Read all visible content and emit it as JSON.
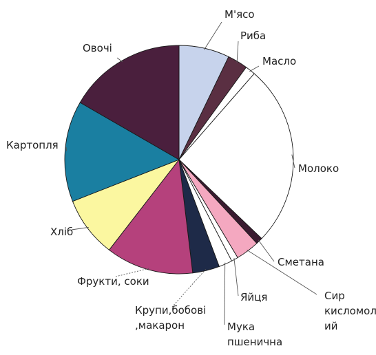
{
  "chart_data": {
    "type": "pie",
    "start_angle_deg": 0,
    "direction": "clockwise",
    "legend": "none",
    "slices": [
      {
        "label": "М'ясо",
        "label_lines": [
          "М'ясо"
        ],
        "value": 7.5,
        "color": "#c7d3ec"
      },
      {
        "label": "Риба",
        "label_lines": [
          "Риба"
        ],
        "value": 3.0,
        "color": "#5a2f42"
      },
      {
        "label": "Масло",
        "label_lines": [
          "Масло"
        ],
        "value": 1.5,
        "color": "#ffffff"
      },
      {
        "label": "Молоко",
        "label_lines": [
          "Молоко"
        ],
        "value": 27.0,
        "color": "#ffffff"
      },
      {
        "label": "Сметана",
        "label_lines": [
          "Сметана"
        ],
        "value": 1.0,
        "color": "#3a1a30"
      },
      {
        "label": "Сир кисломолочний",
        "label_lines": [
          "Сир",
          "кисломолочн",
          "ий"
        ],
        "value": 3.5,
        "color": "#f4a8c0"
      },
      {
        "label": "Яйця",
        "label_lines": [
          "Яйця"
        ],
        "value": 1.0,
        "color": "#ffffff"
      },
      {
        "label": "Мука пшенична",
        "label_lines": [
          "Мука",
          "пшенична"
        ],
        "value": 2.0,
        "color": "#ffffff"
      },
      {
        "label": "Крупи,бобові ,макарон",
        "label_lines": [
          "Крупи,бобові",
          ",макарон"
        ],
        "value": 4.0,
        "color": "#1e2a48"
      },
      {
        "label": "Фрукти, соки",
        "label_lines": [
          "Фрукти, соки"
        ],
        "value": 13.0,
        "color": "#b5417c"
      },
      {
        "label": "Хліб",
        "label_lines": [
          "Хліб"
        ],
        "value": 9.0,
        "color": "#fbf7a0"
      },
      {
        "label": "Картопля",
        "label_lines": [
          "Картопля"
        ],
        "value": 15.0,
        "color": "#1a7fa1"
      },
      {
        "label": "Овочі",
        "label_lines": [
          "Овочі"
        ],
        "value": 17.5,
        "color": "#4a1f3d"
      }
    ]
  }
}
